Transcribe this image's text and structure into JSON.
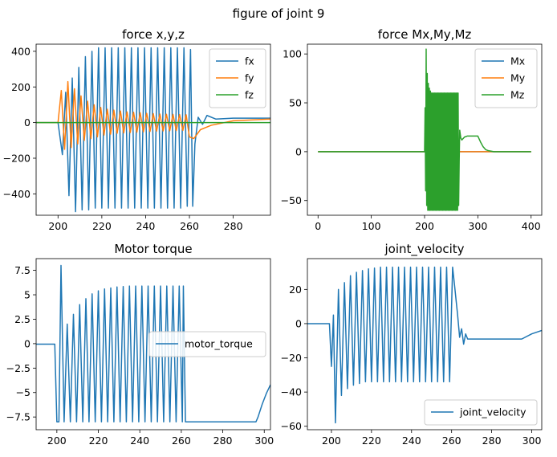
{
  "suptitle": "figure of joint 9",
  "colors": {
    "C0": "#1f77b4",
    "C1": "#ff7f0e",
    "C2": "#2ca02c"
  },
  "chart_data": [
    {
      "type": "line",
      "title": "force x,y,z",
      "xlim": [
        190,
        297
      ],
      "ylim": [
        -520,
        440
      ],
      "xticks": [
        200,
        220,
        240,
        260,
        280
      ],
      "yticks": [
        -400,
        -200,
        0,
        200,
        400
      ],
      "legend": "upper right",
      "series": [
        {
          "name": "fx",
          "color": "#1f77b4",
          "x": [
            190,
            200,
            202,
            203.5,
            205,
            206.5,
            208,
            209.5,
            211,
            212.5,
            214,
            215.5,
            217,
            218.5,
            220,
            221.5,
            223,
            224.5,
            226,
            227.5,
            229,
            230.5,
            232,
            233.5,
            235,
            236.5,
            238,
            239.5,
            241,
            242.5,
            244,
            245.5,
            247,
            248.5,
            250,
            251.5,
            253,
            254.5,
            256,
            257.5,
            259,
            260.5,
            261.5,
            262.5,
            264,
            266,
            268,
            272,
            280,
            297
          ],
          "y": [
            0,
            0,
            -180,
            170,
            -410,
            250,
            -500,
            310,
            -490,
            370,
            -490,
            400,
            -480,
            420,
            -480,
            420,
            -480,
            420,
            -480,
            420,
            -480,
            420,
            -480,
            420,
            -480,
            420,
            -480,
            420,
            -480,
            420,
            -480,
            420,
            -480,
            420,
            -480,
            420,
            -480,
            420,
            -480,
            420,
            -470,
            410,
            -470,
            -120,
            30,
            -10,
            40,
            20,
            25,
            25
          ]
        },
        {
          "name": "fy",
          "color": "#ff7f0e",
          "x": [
            190,
            200,
            201.5,
            203,
            204.5,
            206,
            207.5,
            209,
            210.5,
            212,
            213.5,
            215,
            216.5,
            218,
            219.5,
            221,
            222.5,
            224,
            225.5,
            227,
            228.5,
            230,
            231.5,
            233,
            234.5,
            236,
            237.5,
            239,
            240.5,
            242,
            243.5,
            245,
            246.5,
            248,
            249.5,
            251,
            252.5,
            254,
            255.5,
            257,
            258.5,
            260,
            262,
            265,
            270,
            280,
            297
          ],
          "y": [
            0,
            0,
            180,
            -150,
            230,
            -140,
            190,
            -120,
            150,
            -100,
            120,
            -90,
            100,
            -80,
            85,
            -70,
            75,
            -65,
            70,
            -60,
            65,
            -58,
            60,
            -56,
            58,
            -54,
            55,
            -52,
            52,
            -50,
            50,
            -48,
            48,
            -47,
            47,
            -46,
            46,
            -45,
            45,
            -44,
            44,
            -80,
            -90,
            -40,
            -15,
            10,
            20
          ]
        },
        {
          "name": "fz",
          "color": "#2ca02c",
          "x": [
            190,
            297
          ],
          "y": [
            0,
            0
          ]
        }
      ]
    },
    {
      "type": "line",
      "title": "force Mx,My,Mz",
      "xlim": [
        -20,
        420
      ],
      "ylim": [
        -65,
        110
      ],
      "xticks": [
        0,
        100,
        200,
        300,
        400
      ],
      "yticks": [
        -50,
        0,
        50,
        100
      ],
      "legend": "upper right",
      "series": [
        {
          "name": "Mx",
          "color": "#1f77b4",
          "x": [
            0,
            400
          ],
          "y": [
            0,
            0
          ]
        },
        {
          "name": "My",
          "color": "#ff7f0e",
          "x": [
            0,
            400
          ],
          "y": [
            0,
            0
          ]
        },
        {
          "name": "Mz",
          "color": "#2ca02c",
          "x": [
            0,
            200,
            201,
            202,
            203,
            204,
            205,
            206,
            207,
            208,
            209,
            210,
            211,
            212,
            213,
            214,
            215,
            216,
            217,
            218,
            219,
            220,
            221,
            222,
            223,
            224,
            225,
            226,
            227,
            228,
            229,
            230,
            231,
            232,
            233,
            234,
            235,
            236,
            237,
            238,
            239,
            240,
            241,
            242,
            243,
            244,
            245,
            246,
            247,
            248,
            249,
            250,
            251,
            252,
            253,
            254,
            255,
            256,
            257,
            258,
            259,
            260,
            261,
            262,
            263,
            264,
            265,
            266,
            268,
            270,
            275,
            280,
            290,
            300,
            305,
            310,
            315,
            320,
            330,
            340,
            400
          ],
          "y": [
            0,
            0,
            45,
            -40,
            105,
            -55,
            80,
            -60,
            70,
            -60,
            65,
            -60,
            62,
            -60,
            60,
            -60,
            60,
            -60,
            60,
            -60,
            60,
            -60,
            60,
            -60,
            60,
            -60,
            60,
            -60,
            60,
            -60,
            60,
            -60,
            60,
            -60,
            60,
            -60,
            60,
            -60,
            60,
            -60,
            60,
            -60,
            60,
            -60,
            60,
            -60,
            60,
            -60,
            60,
            -60,
            60,
            -60,
            60,
            -60,
            60,
            -60,
            60,
            -60,
            60,
            -60,
            60,
            -60,
            60,
            -60,
            60,
            -55,
            -10,
            22,
            14,
            12,
            15,
            16,
            16,
            16,
            10,
            5,
            2,
            1,
            0,
            0,
            0
          ]
        }
      ]
    },
    {
      "type": "line",
      "title": "Motor torque",
      "xlim": [
        190,
        303
      ],
      "ylim": [
        -8.8,
        8.7
      ],
      "xticks": [
        200,
        220,
        240,
        260,
        280,
        300
      ],
      "yticks": [
        -7.5,
        -5.0,
        -2.5,
        0.0,
        2.5,
        5.0,
        7.5
      ],
      "legend": "center right",
      "series": [
        {
          "name": "motor_torque",
          "color": "#1f77b4",
          "x": [
            190,
            199,
            200,
            201,
            202,
            203.5,
            205,
            206.5,
            208,
            209.5,
            211,
            212.5,
            214,
            215.5,
            217,
            218.5,
            220,
            221.5,
            223,
            224.5,
            226,
            227.5,
            229,
            230.5,
            232,
            233.5,
            235,
            236.5,
            238,
            239.5,
            241,
            242.5,
            244,
            245.5,
            247,
            248.5,
            250,
            251.5,
            253,
            254.5,
            256,
            257.5,
            259,
            260.5,
            261,
            262,
            270,
            280,
            290,
            296,
            297,
            299,
            301,
            303
          ],
          "y": [
            -0.05,
            -0.05,
            -8,
            -8,
            8,
            -8,
            2,
            -8,
            3,
            -8,
            4,
            -8,
            4.6,
            -8,
            5.1,
            -8,
            5.4,
            -8,
            5.6,
            -8,
            5.7,
            -8,
            5.8,
            -8,
            5.85,
            -8,
            5.9,
            -8,
            5.9,
            -8,
            5.9,
            -8,
            5.9,
            -8,
            5.9,
            -8,
            5.9,
            -8,
            5.9,
            -8,
            5.9,
            -8,
            5.9,
            -8,
            5.9,
            -8,
            -8,
            -8,
            -8,
            -8,
            -7.5,
            -6.2,
            -5.1,
            -4.2
          ]
        }
      ]
    },
    {
      "type": "line",
      "title": "joint_velocity",
      "xlim": [
        188,
        305
      ],
      "ylim": [
        -62,
        38
      ],
      "xticks": [
        200,
        220,
        240,
        260,
        280,
        300
      ],
      "yticks": [
        -60,
        -40,
        -20,
        0,
        20
      ],
      "legend": "lower right",
      "series": [
        {
          "name": "joint_velocity",
          "color": "#1f77b4",
          "x": [
            188,
            199,
            200,
            201,
            202,
            203.5,
            205,
            206.5,
            208,
            209.5,
            211,
            212.5,
            214,
            215.5,
            217,
            218.5,
            220,
            221.5,
            223,
            224.5,
            226,
            227.5,
            229,
            230.5,
            232,
            233.5,
            235,
            236.5,
            238,
            239.5,
            241,
            242.5,
            244,
            245.5,
            247,
            248.5,
            250,
            251.5,
            253,
            254.5,
            256,
            257.5,
            259,
            260.5,
            261.5,
            263,
            264,
            265,
            266,
            267,
            268,
            270,
            275,
            285,
            295,
            300,
            305
          ],
          "y": [
            0,
            0,
            -25,
            5,
            -58,
            20,
            -42,
            24,
            -38,
            28,
            -36,
            30,
            -35,
            31,
            -34,
            32,
            -34,
            32.5,
            -34,
            33,
            -34,
            33,
            -34,
            33,
            -34,
            33,
            -34,
            33,
            -34,
            33,
            -34,
            33,
            -34,
            33,
            -34,
            33,
            -34,
            33,
            -34,
            33,
            -34,
            33,
            -34,
            33,
            22,
            5,
            -8,
            -3,
            -12,
            -6,
            -9,
            -9,
            -9,
            -9,
            -9,
            -6,
            -4
          ]
        }
      ]
    }
  ]
}
